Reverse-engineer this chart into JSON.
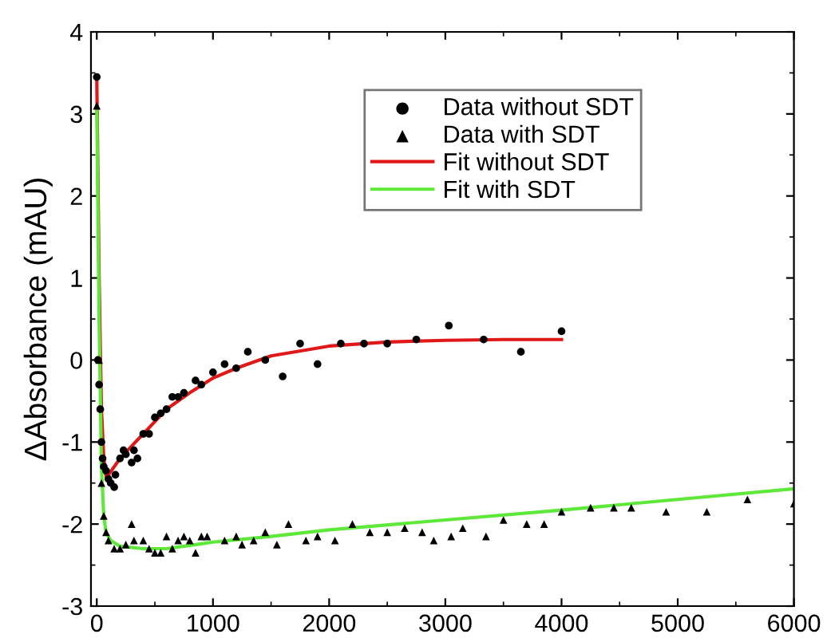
{
  "chart_data": {
    "type": "scatter",
    "ylabel": "ΔAbsorbance (mAU)",
    "xlim": [
      -50,
      6000
    ],
    "ylim": [
      -3,
      4
    ],
    "xticks": [
      0,
      1000,
      2000,
      3000,
      4000,
      5000,
      6000
    ],
    "yticks": [
      -3,
      -2,
      -1,
      0,
      1,
      2,
      3,
      4
    ],
    "legend": "top right",
    "grid": false,
    "series": [
      {
        "name": "Data without SDT",
        "marker": "circle",
        "color": "#000000",
        "x": [
          0,
          10,
          20,
          30,
          40,
          50,
          60,
          80,
          100,
          120,
          150,
          160,
          200,
          230,
          250,
          300,
          320,
          350,
          400,
          450,
          500,
          550,
          600,
          650,
          700,
          750,
          850,
          900,
          1000,
          1100,
          1200,
          1300,
          1450,
          1600,
          1750,
          1900,
          2100,
          2300,
          2500,
          2750,
          3030,
          3330,
          3650,
          4000
        ],
        "values": [
          3.45,
          0,
          -0.3,
          -0.6,
          -1.0,
          -1.2,
          -1.3,
          -1.35,
          -1.45,
          -1.5,
          -1.55,
          -1.4,
          -1.2,
          -1.1,
          -1.15,
          -1.25,
          -1.1,
          -1.2,
          -0.9,
          -0.9,
          -0.7,
          -0.65,
          -0.6,
          -0.45,
          -0.45,
          -0.4,
          -0.25,
          -0.3,
          -0.15,
          -0.05,
          -0.1,
          0.1,
          0,
          -0.2,
          0.2,
          -0.05,
          0.2,
          0.2,
          0.2,
          0.25,
          0.42,
          0.25,
          0.1,
          0.35
        ]
      },
      {
        "name": "Data with SDT",
        "marker": "triangle",
        "color": "#000000",
        "x": [
          0,
          20,
          40,
          60,
          80,
          100,
          150,
          200,
          250,
          300,
          320,
          400,
          450,
          500,
          550,
          600,
          650,
          700,
          750,
          800,
          850,
          900,
          950,
          1100,
          1200,
          1250,
          1350,
          1450,
          1550,
          1650,
          1800,
          1900,
          2050,
          2200,
          2350,
          2500,
          2650,
          2800,
          2900,
          3050,
          3150,
          3350,
          3500,
          3700,
          3850,
          4000,
          4250,
          4450,
          4600,
          4900,
          5250,
          5600,
          6000
        ],
        "values": [
          3.1,
          0,
          -1.5,
          -1.9,
          -2.1,
          -2.2,
          -2.3,
          -2.3,
          -2.25,
          -2.0,
          -2.2,
          -2.2,
          -2.3,
          -2.35,
          -2.35,
          -2.15,
          -2.3,
          -2.2,
          -2.15,
          -2.2,
          -2.35,
          -2.15,
          -2.15,
          -2.2,
          -2.15,
          -2.25,
          -2.2,
          -2.1,
          -2.25,
          -2.0,
          -2.2,
          -2.15,
          -2.2,
          -2.0,
          -2.1,
          -2.1,
          -2.05,
          -2.1,
          -2.2,
          -2.15,
          -2.05,
          -2.15,
          -1.95,
          -2.0,
          -2.0,
          -1.85,
          -1.8,
          -1.8,
          -1.8,
          -1.85,
          -1.85,
          -1.7,
          -1.75
        ]
      },
      {
        "name": "Fit without SDT",
        "type": "line",
        "line_style": "solid",
        "color": "#e01818",
        "x": [
          0,
          20,
          40,
          60,
          80,
          100,
          200,
          300,
          400,
          500,
          600,
          800,
          1000,
          1200,
          1500,
          2000,
          2500,
          3000,
          3500,
          4000
        ],
        "values": [
          3.45,
          1.0,
          -0.6,
          -1.2,
          -1.42,
          -1.4,
          -1.2,
          -1.05,
          -0.9,
          -0.75,
          -0.6,
          -0.4,
          -0.22,
          -0.1,
          0.05,
          0.17,
          0.22,
          0.24,
          0.25,
          0.25
        ]
      },
      {
        "name": "Fit with SDT",
        "type": "line",
        "line_style": "solid",
        "color": "#5ee83a",
        "x": [
          0,
          20,
          40,
          60,
          80,
          120,
          200,
          400,
          600,
          800,
          1000,
          1500,
          2000,
          3000,
          4000,
          5000,
          6000
        ],
        "values": [
          3.1,
          0.5,
          -1.3,
          -1.9,
          -2.1,
          -2.2,
          -2.27,
          -2.3,
          -2.3,
          -2.26,
          -2.22,
          -2.15,
          -2.07,
          -1.95,
          -1.83,
          -1.7,
          -1.57
        ]
      }
    ]
  }
}
